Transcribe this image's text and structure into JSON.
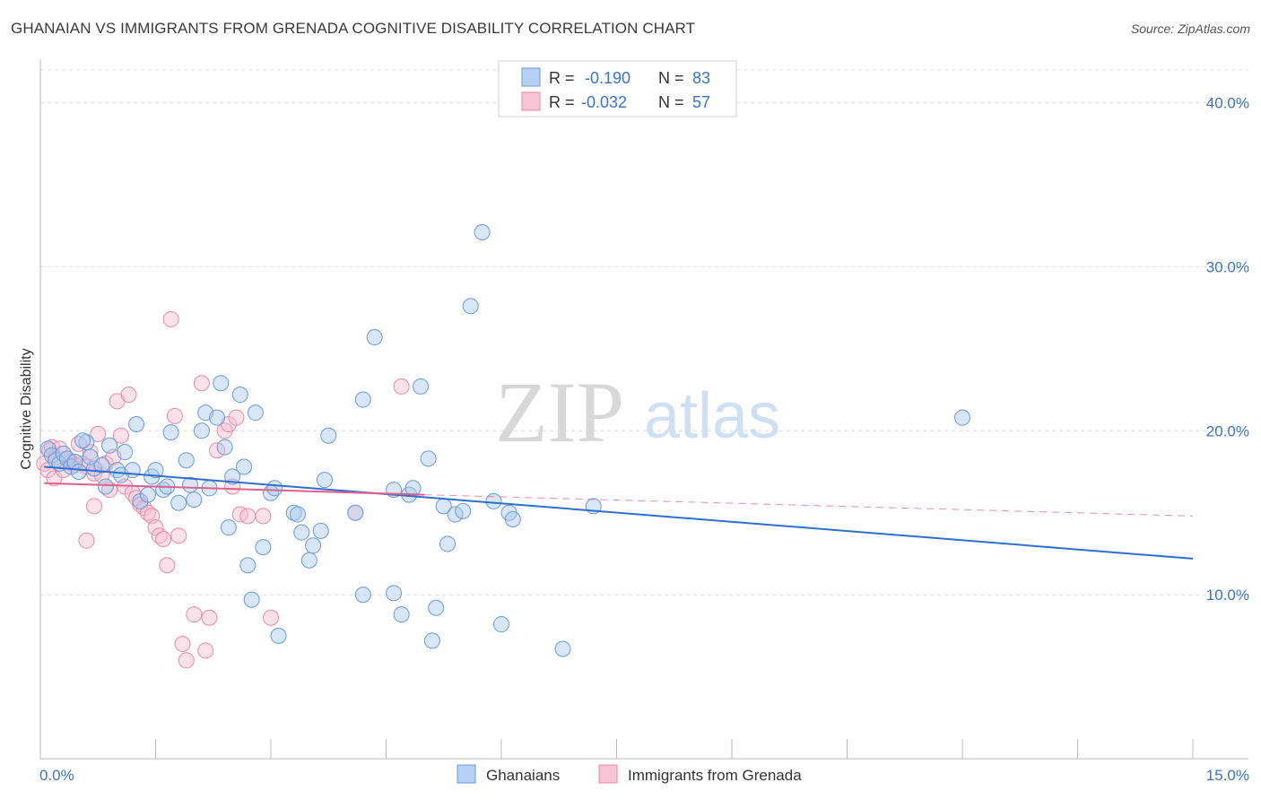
{
  "title": "GHANAIAN VS IMMIGRANTS FROM GRENADA COGNITIVE DISABILITY CORRELATION CHART",
  "source": "Source: ZipAtlas.com",
  "watermark": {
    "zip": "ZIP",
    "atlas": "atlas"
  },
  "legend": {
    "r_label": "R =",
    "n_label": "N =",
    "series": [
      {
        "r": "-0.190",
        "n": "83"
      },
      {
        "r": "-0.032",
        "n": "57"
      }
    ]
  },
  "bottom_legend": [
    "Ghanaians",
    "Immigrants from Grenada"
  ],
  "colors": {
    "blue_fill": "#a9c8ee",
    "blue_stroke": "#6a9bd8",
    "blue_line": "#2f6fce",
    "pink_fill": "#f6bfd0",
    "pink_stroke": "#ea88a8",
    "pink_line": "#e0608c",
    "grid": "#dcdcdc",
    "tick_text": "#3b73c9"
  },
  "chart_data": {
    "type": "scatter",
    "title": "GHANAIAN VS IMMIGRANTS FROM GRENADA COGNITIVE DISABILITY CORRELATION CHART",
    "xlabel": "",
    "ylabel": "Cognitive Disability",
    "xlim": [
      0,
      15
    ],
    "ylim": [
      0,
      42
    ],
    "x_tick_labels": [
      "0.0%",
      "15.0%"
    ],
    "y_ticks": [
      10,
      20,
      30,
      40
    ],
    "y_tick_labels": [
      "10.0%",
      "20.0%",
      "30.0%",
      "40.0%"
    ],
    "series": [
      {
        "name": "Ghanaians",
        "r": -0.19,
        "n": 83,
        "trend": {
          "x0": 0.05,
          "y0": 17.8,
          "x1": 15.0,
          "y1": 12.2
        },
        "points": [
          [
            0.1,
            18.9
          ],
          [
            0.15,
            18.5
          ],
          [
            0.2,
            18.2
          ],
          [
            0.25,
            18.0
          ],
          [
            0.3,
            18.6
          ],
          [
            0.35,
            18.3
          ],
          [
            0.4,
            17.8
          ],
          [
            0.45,
            18.1
          ],
          [
            0.5,
            17.5
          ],
          [
            0.6,
            19.3
          ],
          [
            0.7,
            17.7
          ],
          [
            0.8,
            17.9
          ],
          [
            0.85,
            16.6
          ],
          [
            0.9,
            19.1
          ],
          [
            1.0,
            17.6
          ],
          [
            1.05,
            17.3
          ],
          [
            1.1,
            18.7
          ],
          [
            1.2,
            17.6
          ],
          [
            1.25,
            20.4
          ],
          [
            1.3,
            15.7
          ],
          [
            1.4,
            16.1
          ],
          [
            1.45,
            17.2
          ],
          [
            1.5,
            17.6
          ],
          [
            1.6,
            16.4
          ],
          [
            1.65,
            16.6
          ],
          [
            1.7,
            19.9
          ],
          [
            1.8,
            15.6
          ],
          [
            1.9,
            18.2
          ],
          [
            1.95,
            16.7
          ],
          [
            2.0,
            15.8
          ],
          [
            2.1,
            20.0
          ],
          [
            2.15,
            21.1
          ],
          [
            2.2,
            16.5
          ],
          [
            2.3,
            20.8
          ],
          [
            2.35,
            22.9
          ],
          [
            2.4,
            19.0
          ],
          [
            2.45,
            14.1
          ],
          [
            2.5,
            17.2
          ],
          [
            2.6,
            22.2
          ],
          [
            2.65,
            17.8
          ],
          [
            2.7,
            11.8
          ],
          [
            2.75,
            9.7
          ],
          [
            2.8,
            21.1
          ],
          [
            2.9,
            12.9
          ],
          [
            3.0,
            16.2
          ],
          [
            3.05,
            16.5
          ],
          [
            3.1,
            7.5
          ],
          [
            3.3,
            15.0
          ],
          [
            3.35,
            14.9
          ],
          [
            3.4,
            13.8
          ],
          [
            3.5,
            12.1
          ],
          [
            3.55,
            13.0
          ],
          [
            3.65,
            13.9
          ],
          [
            3.7,
            17.0
          ],
          [
            3.75,
            19.7
          ],
          [
            4.1,
            15.0
          ],
          [
            4.2,
            21.9
          ],
          [
            4.2,
            10.0
          ],
          [
            4.35,
            25.7
          ],
          [
            4.6,
            16.4
          ],
          [
            4.6,
            10.1
          ],
          [
            4.7,
            8.8
          ],
          [
            4.8,
            16.1
          ],
          [
            4.85,
            16.5
          ],
          [
            4.95,
            22.7
          ],
          [
            5.05,
            18.3
          ],
          [
            5.1,
            7.2
          ],
          [
            5.15,
            9.2
          ],
          [
            5.25,
            15.4
          ],
          [
            5.3,
            13.1
          ],
          [
            5.4,
            14.9
          ],
          [
            5.5,
            15.1
          ],
          [
            5.6,
            27.6
          ],
          [
            5.75,
            32.1
          ],
          [
            5.9,
            15.7
          ],
          [
            6.0,
            8.2
          ],
          [
            6.1,
            15.0
          ],
          [
            6.15,
            14.6
          ],
          [
            6.8,
            6.7
          ],
          [
            7.2,
            15.4
          ],
          [
            12.0,
            20.8
          ],
          [
            0.55,
            19.4
          ],
          [
            0.65,
            18.4
          ]
        ]
      },
      {
        "name": "Immigrants from Grenada",
        "r": -0.032,
        "n": 57,
        "trend": {
          "x0": 0.05,
          "y0": 16.8,
          "x1": 5.0,
          "y1": 16.1
        },
        "trend_dashed": {
          "x0": 5.0,
          "y0": 16.1,
          "x1": 15.0,
          "y1": 14.8
        },
        "points": [
          [
            0.05,
            18.0
          ],
          [
            0.1,
            17.6
          ],
          [
            0.12,
            18.8
          ],
          [
            0.15,
            19.0
          ],
          [
            0.18,
            17.1
          ],
          [
            0.2,
            18.4
          ],
          [
            0.25,
            18.9
          ],
          [
            0.3,
            17.6
          ],
          [
            0.35,
            18.3
          ],
          [
            0.4,
            18.1
          ],
          [
            0.45,
            17.9
          ],
          [
            0.5,
            19.2
          ],
          [
            0.55,
            18.0
          ],
          [
            0.6,
            17.8
          ],
          [
            0.65,
            18.7
          ],
          [
            0.7,
            17.4
          ],
          [
            0.75,
            19.8
          ],
          [
            0.8,
            17.3
          ],
          [
            0.85,
            18.0
          ],
          [
            0.9,
            16.4
          ],
          [
            0.95,
            18.4
          ],
          [
            1.0,
            21.8
          ],
          [
            1.05,
            19.7
          ],
          [
            1.1,
            16.6
          ],
          [
            1.15,
            22.2
          ],
          [
            1.2,
            16.2
          ],
          [
            1.25,
            15.9
          ],
          [
            1.3,
            15.5
          ],
          [
            1.35,
            15.3
          ],
          [
            1.4,
            15.0
          ],
          [
            1.45,
            14.8
          ],
          [
            1.5,
            14.1
          ],
          [
            1.55,
            13.6
          ],
          [
            1.6,
            13.4
          ],
          [
            1.65,
            11.8
          ],
          [
            1.7,
            26.8
          ],
          [
            1.75,
            20.9
          ],
          [
            1.8,
            13.6
          ],
          [
            1.85,
            7.0
          ],
          [
            1.9,
            6.0
          ],
          [
            2.0,
            8.8
          ],
          [
            2.1,
            22.9
          ],
          [
            2.15,
            6.6
          ],
          [
            2.2,
            8.6
          ],
          [
            2.3,
            18.8
          ],
          [
            2.4,
            20.0
          ],
          [
            2.45,
            20.4
          ],
          [
            2.5,
            16.6
          ],
          [
            2.55,
            20.8
          ],
          [
            2.6,
            14.9
          ],
          [
            2.7,
            14.8
          ],
          [
            2.9,
            14.8
          ],
          [
            3.0,
            8.6
          ],
          [
            4.1,
            15.0
          ],
          [
            4.7,
            22.7
          ],
          [
            0.6,
            13.3
          ],
          [
            0.7,
            15.4
          ]
        ]
      }
    ]
  }
}
